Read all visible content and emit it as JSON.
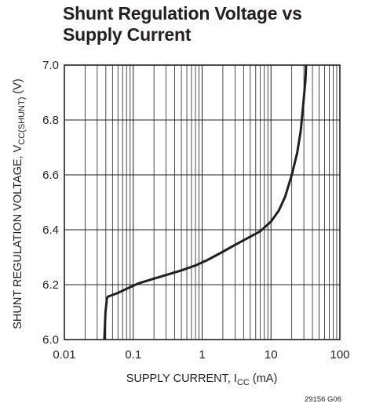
{
  "chart_data": {
    "type": "line",
    "title_line1": "Shunt Regulation Voltage vs",
    "title_line2": "Supply Current",
    "xlabel": "SUPPLY CURRENT, I",
    "xlabel_sub": "CC",
    "xlabel_suffix": " (mA)",
    "ylabel": "SHUNT REGULATION VOLTAGE, V",
    "ylabel_sub": "CC(SHUNT)",
    "ylabel_suffix": " (V)",
    "figure_id": "29156 G06",
    "x_scale": "log",
    "xlim": [
      0.01,
      100
    ],
    "ylim": [
      6.0,
      7.0
    ],
    "x_ticks": [
      0.01,
      0.1,
      1,
      10,
      100
    ],
    "x_tick_labels": [
      "0.01",
      "0.1",
      "1",
      "10",
      "100"
    ],
    "y_ticks": [
      6.0,
      6.2,
      6.4,
      6.6,
      6.8,
      7.0
    ],
    "y_tick_labels": [
      "6.0",
      "6.2",
      "6.4",
      "6.6",
      "6.8",
      "7.0"
    ],
    "grid": true,
    "series": [
      {
        "x": [
          0.038,
          0.0395,
          0.0415,
          0.043,
          0.047,
          0.06,
          0.08,
          0.12,
          0.2,
          0.3,
          0.5,
          0.8,
          1.2,
          2,
          3,
          5,
          7,
          10,
          13,
          16,
          20,
          24,
          27,
          29,
          30.5,
          31.5,
          32,
          32.3
        ],
        "y": [
          6.0,
          6.1,
          6.15,
          6.157,
          6.16,
          6.17,
          6.185,
          6.205,
          6.222,
          6.235,
          6.252,
          6.27,
          6.29,
          6.32,
          6.345,
          6.375,
          6.395,
          6.43,
          6.47,
          6.52,
          6.6,
          6.68,
          6.76,
          6.84,
          6.9,
          6.94,
          6.97,
          7.0
        ]
      }
    ]
  },
  "colors": {
    "ink": "#231f20",
    "background": "#ffffff"
  }
}
